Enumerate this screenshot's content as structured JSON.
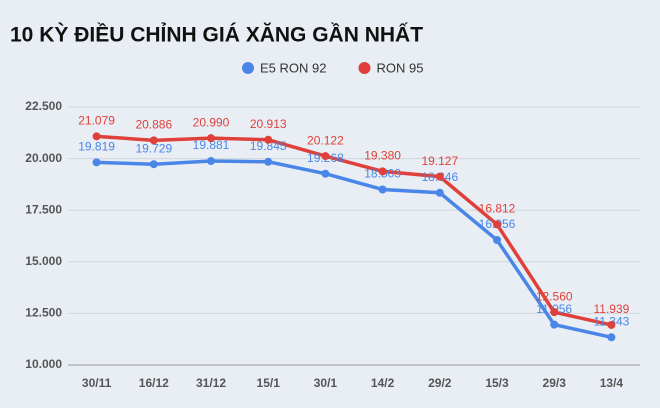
{
  "chart_data": {
    "type": "line",
    "title": "10 KỲ ĐIỀU CHỈNH GIÁ XĂNG GẦN NHẤT",
    "categories": [
      "30/11",
      "16/12",
      "31/12",
      "15/1",
      "30/1",
      "14/2",
      "29/2",
      "15/3",
      "29/3",
      "13/4"
    ],
    "series": [
      {
        "name": "E5 RON 92",
        "color": "#4a86e8",
        "values": [
          19819,
          19729,
          19881,
          19845,
          19268,
          18503,
          18346,
          16056,
          11956,
          11343
        ],
        "value_labels": [
          "19.819",
          "19.729",
          "19.881",
          "19.845",
          "19.268",
          "18.503",
          "18.346",
          "16.056",
          "11.956",
          "11.343"
        ]
      },
      {
        "name": "RON 95",
        "color": "#e0403a",
        "values": [
          21079,
          20886,
          20990,
          20913,
          20122,
          19380,
          19127,
          16812,
          12560,
          11939
        ],
        "value_labels": [
          "21.079",
          "20.886",
          "20.990",
          "20.913",
          "20.122",
          "19.380",
          "19.127",
          "16.812",
          "12.560",
          "11.939"
        ]
      }
    ],
    "ylim": [
      10000,
      22500
    ],
    "yticks": [
      {
        "value": 10000,
        "label": "10.000"
      },
      {
        "value": 12500,
        "label": "12.500"
      },
      {
        "value": 15000,
        "label": "15.000"
      },
      {
        "value": 17500,
        "label": "17.500"
      },
      {
        "value": 20000,
        "label": "20.000"
      },
      {
        "value": 22500,
        "label": "22.500"
      }
    ],
    "grid": true
  }
}
